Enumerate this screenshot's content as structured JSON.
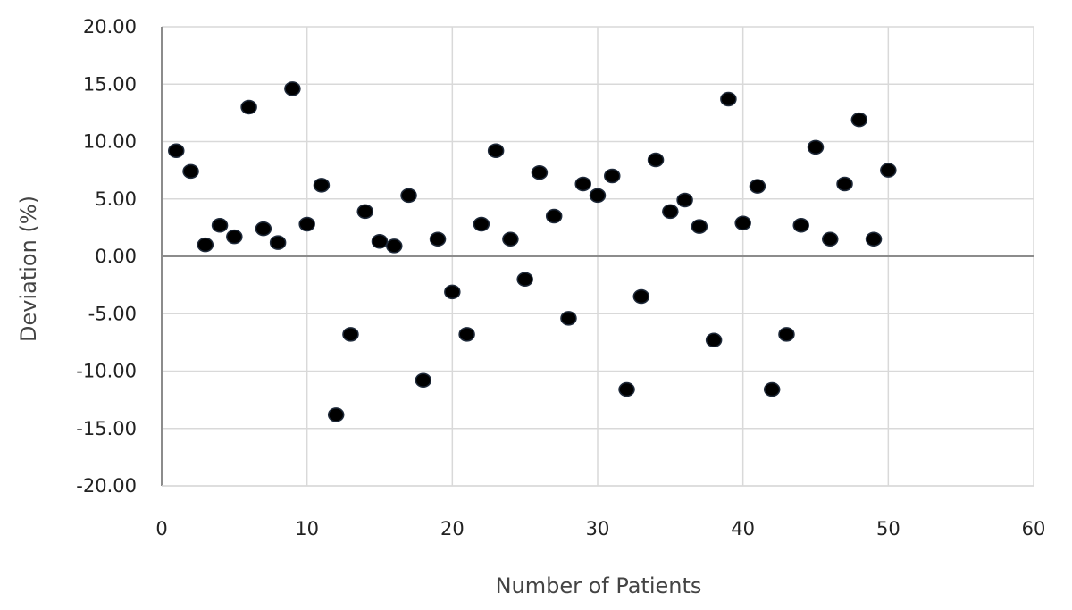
{
  "chart_data": {
    "type": "scatter",
    "xlabel": "Number of Patients",
    "ylabel": "Deviation (%)",
    "xlim": [
      0,
      60
    ],
    "ylim": [
      -20,
      20
    ],
    "x_ticks": [
      0,
      10,
      20,
      30,
      40,
      50,
      60
    ],
    "y_ticks": [
      20,
      15,
      10,
      5,
      0,
      -5,
      -10,
      -15,
      -20
    ],
    "x_tick_labels": [
      "0",
      "10",
      "20",
      "30",
      "40",
      "50",
      "60"
    ],
    "y_tick_labels": [
      "20.00",
      "15.00",
      "10.00",
      "5.00",
      "0.00",
      "-5.00",
      "-10.00",
      "-15.00",
      "-20.00"
    ],
    "grid": true,
    "marker_color": "#000000",
    "x": [
      1,
      2,
      3,
      4,
      5,
      6,
      7,
      8,
      9,
      10,
      11,
      12,
      13,
      14,
      15,
      16,
      17,
      18,
      19,
      20,
      21,
      22,
      23,
      24,
      25,
      26,
      27,
      28,
      29,
      30,
      31,
      32,
      33,
      34,
      35,
      36,
      37,
      38,
      39,
      40,
      41,
      42,
      43,
      44,
      45,
      46,
      47,
      48,
      49,
      50
    ],
    "y": [
      9.2,
      7.4,
      1.0,
      2.7,
      1.7,
      13.0,
      2.4,
      1.2,
      14.6,
      2.8,
      6.2,
      -13.8,
      -6.8,
      3.9,
      1.3,
      0.9,
      5.3,
      -10.8,
      1.5,
      -3.1,
      -6.8,
      2.8,
      9.2,
      1.5,
      -2.0,
      7.3,
      3.5,
      -5.4,
      6.3,
      5.3,
      7.0,
      -11.6,
      -3.5,
      8.4,
      3.9,
      4.9,
      2.6,
      -7.3,
      13.7,
      2.9,
      6.1,
      -11.6,
      -6.8,
      2.7,
      9.5,
      1.5,
      6.3,
      11.9,
      1.5,
      7.5
    ]
  }
}
